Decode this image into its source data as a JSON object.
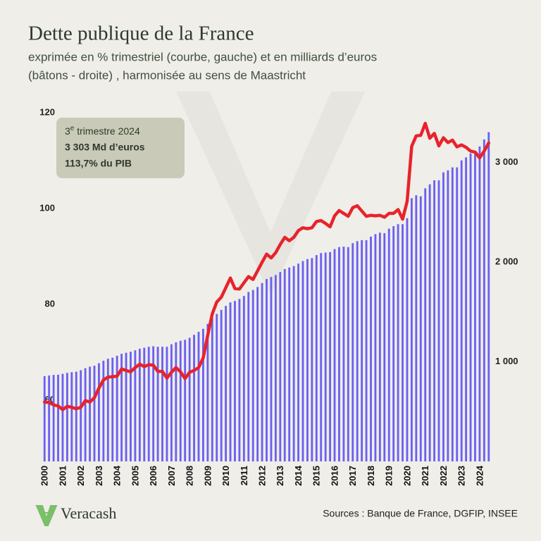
{
  "chart_data": {
    "type": "combo",
    "title": "Dette publique de la France",
    "subtitle": [
      "exprimée en % trimestriel (courbe, gauche) et en milliards d’euros",
      "(bâtons - droite) , harmonisée au sens de Maastricht"
    ],
    "annotation": {
      "line1": [
        "3",
        "e",
        " trimestre 2024"
      ],
      "line2": "3 303 Md d’euros",
      "line3": "113,7% du PIB"
    },
    "source": "Sources : Banque de France, DGFIP, INSEE",
    "brand": "Veracash",
    "categories": [
      "2000",
      null,
      null,
      null,
      "2001",
      null,
      null,
      null,
      "2002",
      null,
      null,
      null,
      "2003",
      null,
      null,
      null,
      "2004",
      null,
      null,
      null,
      "2005",
      null,
      null,
      null,
      "2006",
      null,
      null,
      null,
      "2007",
      null,
      null,
      null,
      "2008",
      null,
      null,
      null,
      "2009",
      null,
      null,
      null,
      "2010",
      null,
      null,
      null,
      "2011",
      null,
      null,
      null,
      "2012",
      null,
      null,
      null,
      "2013",
      null,
      null,
      null,
      "2014",
      null,
      null,
      null,
      "2015",
      null,
      null,
      null,
      "2016",
      null,
      null,
      null,
      "2017",
      null,
      null,
      null,
      "2018",
      null,
      null,
      null,
      "2019",
      null,
      null,
      null,
      "2020",
      null,
      null,
      null,
      "2021",
      null,
      null,
      null,
      "2022",
      null,
      null,
      null,
      "2023",
      null,
      null,
      null,
      "2024",
      null,
      null
    ],
    "series": [
      {
        "type": "bar",
        "axis": "y2",
        "color": "#6b5ff2",
        "values": [
          855,
          862,
          868,
          870,
          878,
          888,
          895,
          900,
          915,
          935,
          950,
          960,
          985,
          1010,
          1030,
          1040,
          1060,
          1080,
          1090,
          1100,
          1115,
          1130,
          1140,
          1150,
          1155,
          1150,
          1150,
          1150,
          1175,
          1195,
          1210,
          1220,
          1240,
          1270,
          1300,
          1330,
          1380,
          1440,
          1480,
          1520,
          1560,
          1595,
          1610,
          1630,
          1660,
          1700,
          1720,
          1750,
          1790,
          1830,
          1850,
          1870,
          1900,
          1930,
          1945,
          1960,
          1985,
          2010,
          2030,
          2040,
          2070,
          2090,
          2095,
          2100,
          2130,
          2150,
          2155,
          2150,
          2190,
          2210,
          2220,
          2220,
          2255,
          2280,
          2295,
          2290,
          2335,
          2360,
          2380,
          2380,
          2440,
          2640,
          2670,
          2660,
          2740,
          2780,
          2820,
          2820,
          2900,
          2920,
          2950,
          2950,
          3020,
          3050,
          3090,
          3100,
          3160,
          3230,
          3303
        ]
      },
      {
        "type": "line",
        "color": "#e8232b",
        "values": [
          59.6,
          59.5,
          59.0,
          58.8,
          58.0,
          58.7,
          58.5,
          58.2,
          58.5,
          59.9,
          59.6,
          60.5,
          62.5,
          64.2,
          64.8,
          64.9,
          65.0,
          66.5,
          66.2,
          65.9,
          66.8,
          67.5,
          67.0,
          67.4,
          67.3,
          66.0,
          66.0,
          64.6,
          65.8,
          66.8,
          65.9,
          64.5,
          65.8,
          66.2,
          66.8,
          68.8,
          73.5,
          78.0,
          80.5,
          81.5,
          83.5,
          85.5,
          83.3,
          83.2,
          84.5,
          85.8,
          85.2,
          87.0,
          88.8,
          90.5,
          89.7,
          90.8,
          92.5,
          94.0,
          93.3,
          94.0,
          95.4,
          96.0,
          95.8,
          96.0,
          97.3,
          97.5,
          96.9,
          96.2,
          98.5,
          99.6,
          99.0,
          98.4,
          100.2,
          100.6,
          99.5,
          98.4,
          98.6,
          98.5,
          98.6,
          98.2,
          99.0,
          99.0,
          99.8,
          97.8,
          101.5,
          113.0,
          115.2,
          115.3,
          117.8,
          114.7,
          115.7,
          113.1,
          114.8,
          113.8,
          114.3,
          112.9,
          113.3,
          112.8,
          112.0,
          111.8,
          110.6,
          112.0,
          113.7
        ]
      }
    ],
    "ylim": [
      47.2,
      121.5
    ],
    "yticks": [
      60,
      80,
      100,
      120
    ],
    "y2lim": [
      0,
      3569
    ],
    "y2ticks": [
      {
        "value": 1000,
        "label": "1 000"
      },
      {
        "value": 2000,
        "label": "2 000"
      },
      {
        "value": 3000,
        "label": "3 000"
      }
    ]
  }
}
